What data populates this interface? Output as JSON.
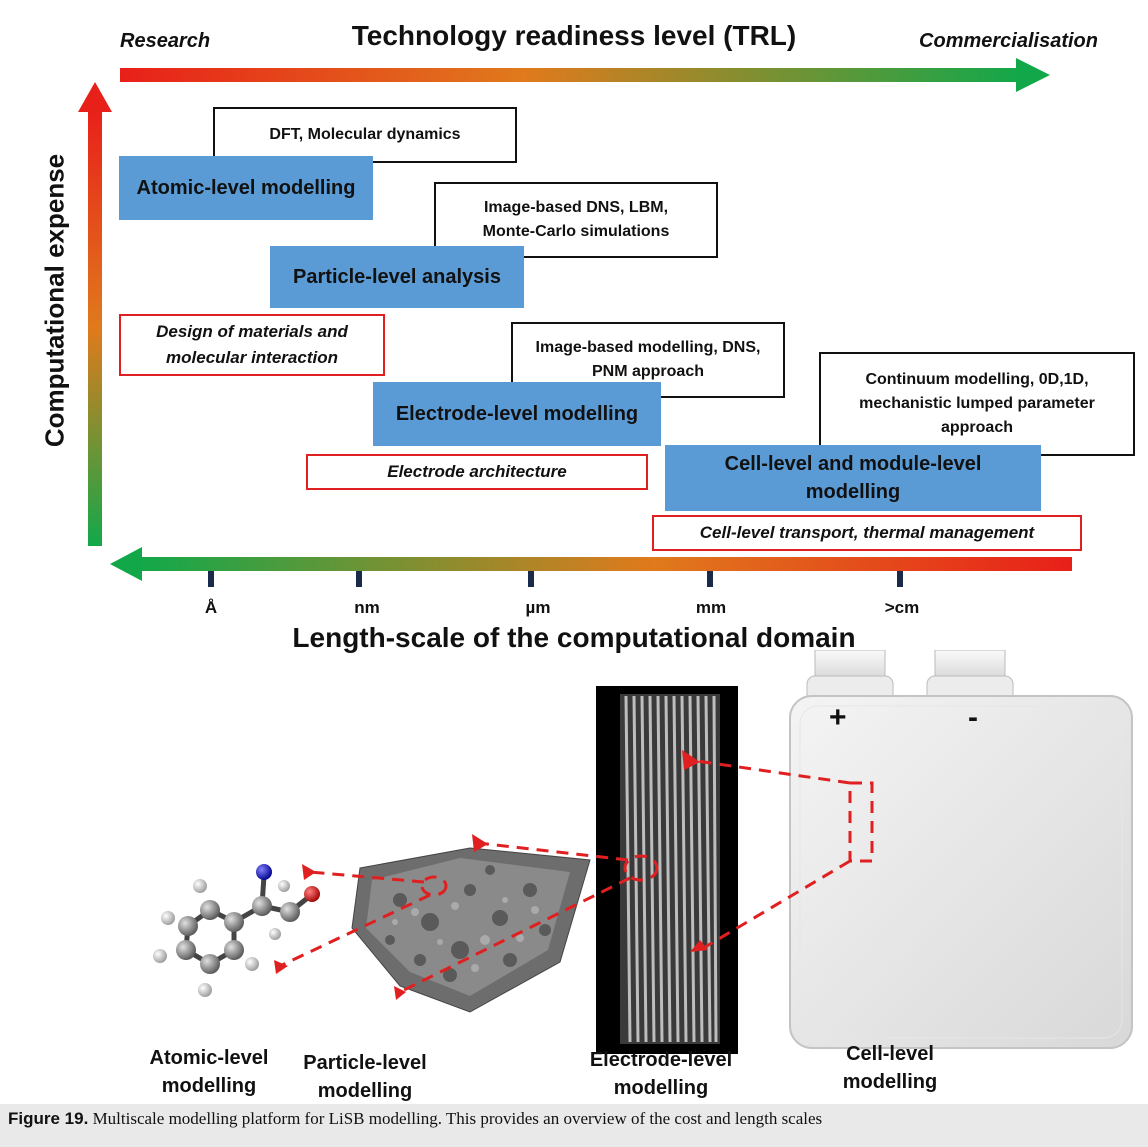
{
  "header": {
    "left": "Research",
    "title": "Technology readiness level (TRL)",
    "right": "Commercialisation"
  },
  "y_axis_label": "Computational expense",
  "x_axis_label": "Length-scale of the computational domain",
  "ticks": [
    "Å",
    "nm",
    "µm",
    "mm",
    ">cm"
  ],
  "blue_boxes": [
    "Atomic-level modelling",
    "Particle-level analysis",
    "Electrode-level modelling",
    "Cell-level and module-level\nmodelling"
  ],
  "method_boxes": [
    "DFT, Molecular dynamics",
    "Image-based DNS, LBM,\nMonte-Carlo simulations",
    "Image-based modelling, DNS,\nPNM approach",
    "Continuum modelling, 0D,1D,\nmechanistic lumped parameter\napproach"
  ],
  "application_boxes": [
    "Design of materials and\nmolecular interaction",
    "Electrode architecture",
    "Cell-level transport, thermal management"
  ],
  "bottom_labels": [
    "Atomic-level\nmodelling",
    "Particle-level\nmodelling",
    "Electrode-level\nmodelling",
    "Cell-level\nmodelling"
  ],
  "terminals": {
    "plus": "+",
    "minus": "-"
  },
  "caption": {
    "label": "Figure 19.",
    "text": " Multiscale modelling platform for LiSB modelling. This provides an overview of the cost and length scales"
  },
  "colors": {
    "blue": "#5b9bd5",
    "red": "#e02020",
    "green": "#19a24a",
    "arrow_dash": "#e02020"
  }
}
